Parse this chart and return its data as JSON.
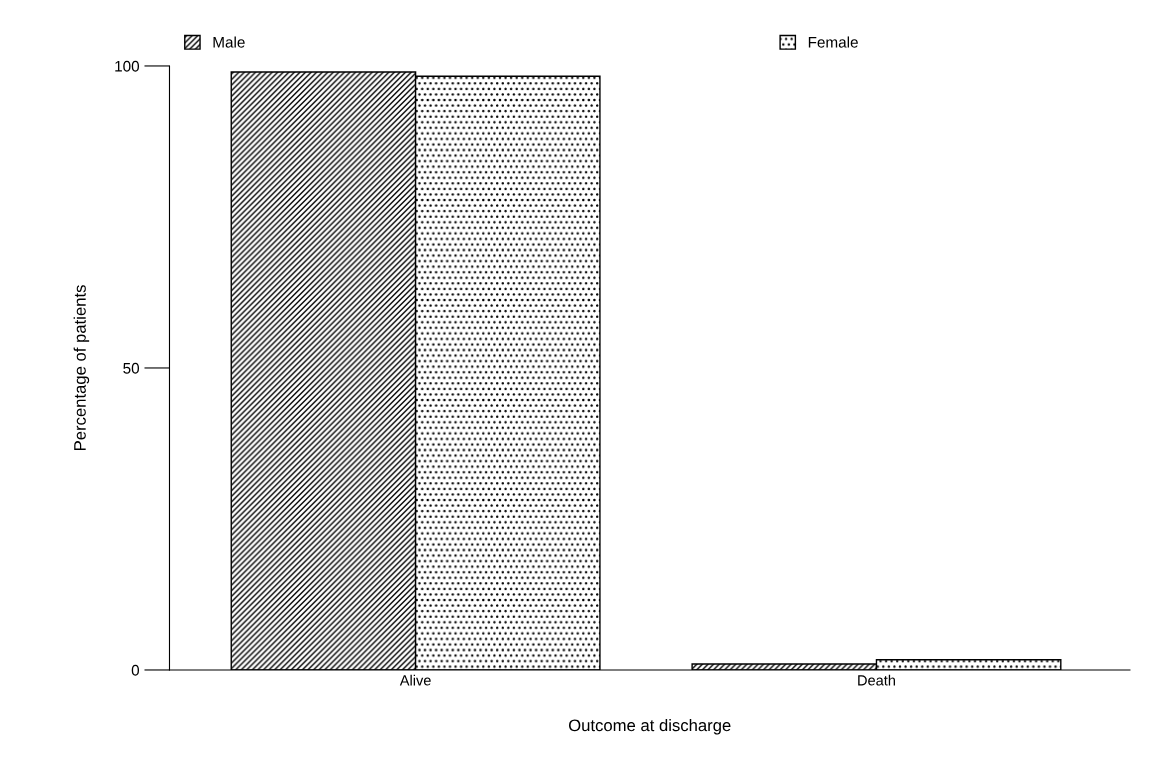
{
  "chart_data": {
    "type": "bar",
    "xlabel": "Outcome at discharge",
    "ylabel": "Percentage of patients",
    "categories": [
      "Alive",
      "Death"
    ],
    "series": [
      {
        "name": "Male",
        "color": "#000000",
        "values": [
          99.0,
          1.0
        ]
      },
      {
        "name": "Female",
        "color": "#000000",
        "values": [
          98.3,
          1.7
        ]
      }
    ],
    "ylim": [
      0,
      100
    ],
    "yticks": [
      0,
      50,
      100
    ],
    "grid": false,
    "legend": "top"
  }
}
